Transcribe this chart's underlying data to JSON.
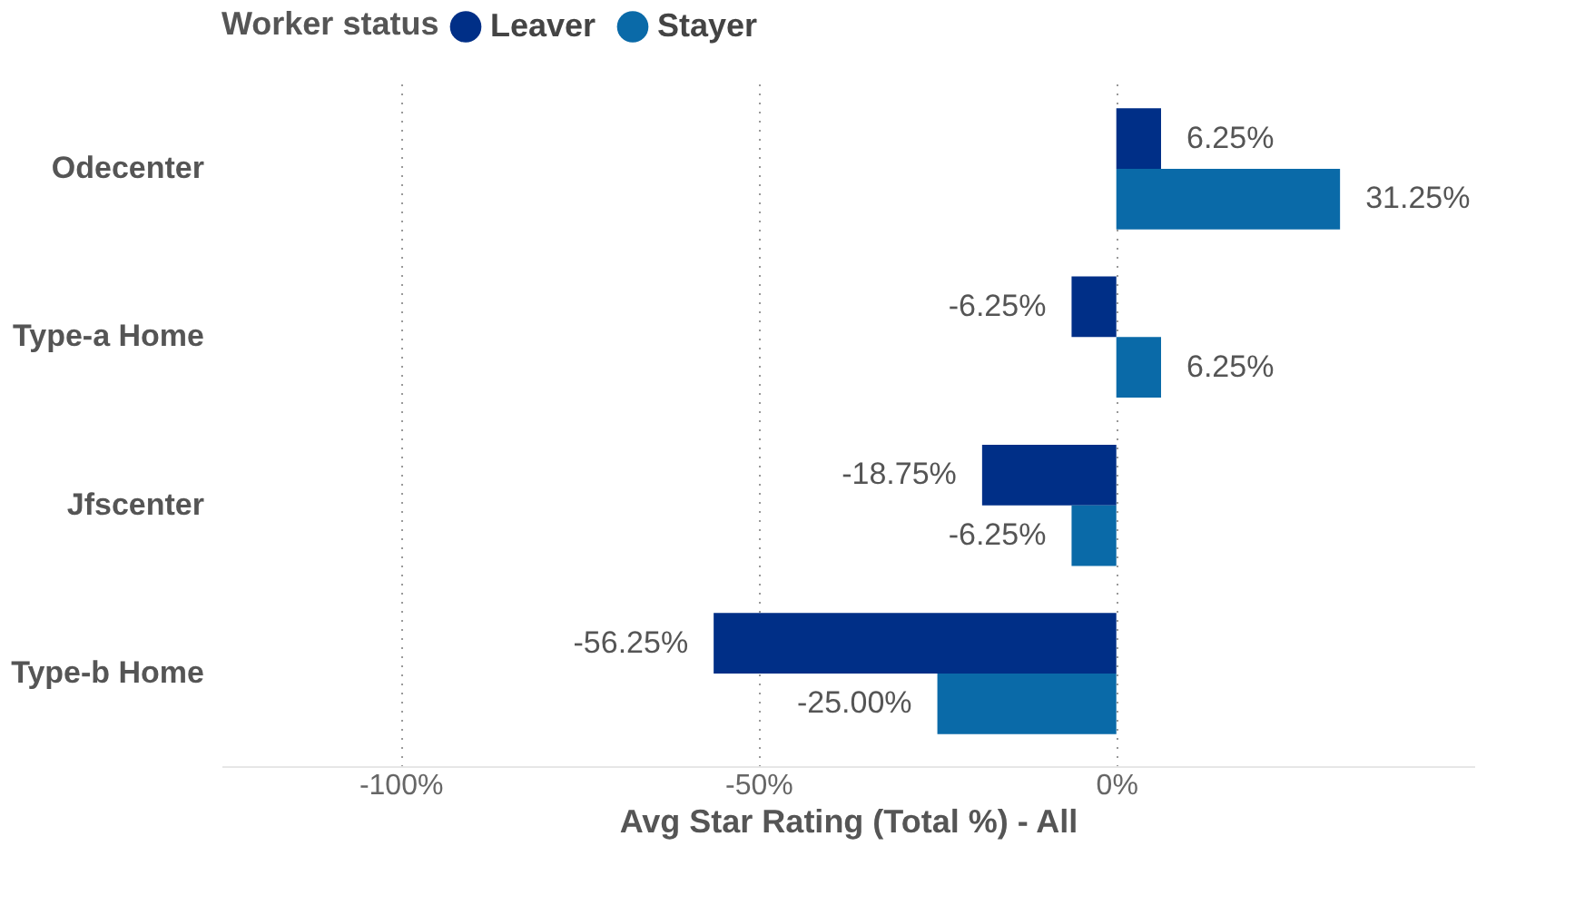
{
  "chart_data": {
    "type": "bar",
    "orientation": "horizontal",
    "xlabel": "Avg Star Rating (Total %) - All",
    "legend_title": "Worker status",
    "legend": "top left",
    "grid": "x",
    "categories": [
      "Odecenter",
      "Type-a Home",
      "Jfscenter",
      "Type-b Home"
    ],
    "series": [
      {
        "name": "Leaver",
        "color": "#002f87",
        "values": [
          6.25,
          -6.25,
          -18.75,
          -56.25
        ],
        "value_labels": [
          "6.25%",
          "-6.25%",
          "-18.75%",
          "-56.25%"
        ]
      },
      {
        "name": "Stayer",
        "color": "#0a6aa8",
        "values": [
          31.25,
          6.25,
          -6.25,
          -25.0
        ],
        "value_labels": [
          "31.25%",
          "6.25%",
          "-6.25%",
          "-25.00%"
        ]
      }
    ],
    "xlim": [
      -125,
      50
    ],
    "xticks": [
      {
        "value": -100,
        "label": "-100%"
      },
      {
        "value": -50,
        "label": "-50%"
      },
      {
        "value": 0,
        "label": "0%"
      }
    ]
  }
}
